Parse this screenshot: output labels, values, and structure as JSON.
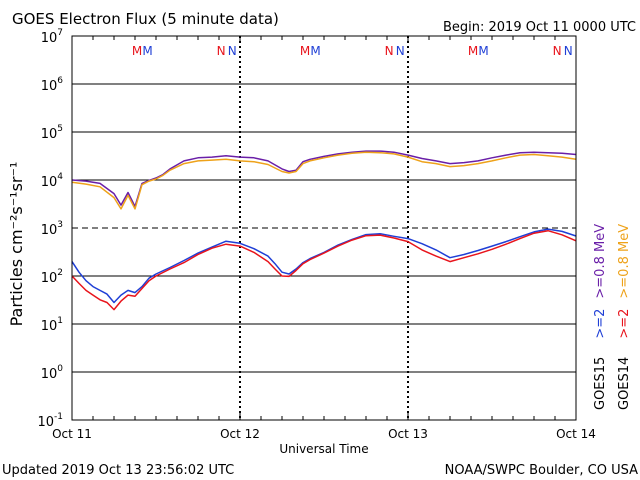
{
  "chart_data": {
    "type": "line",
    "title": "GOES Electron Flux (5 minute data)",
    "begin_label": "Begin: 2019 Oct 11 0000 UTC",
    "xlabel": "Universal Time",
    "ylabel": "Particles cm⁻²s⁻¹sr⁻¹",
    "y_scale": "log",
    "ylim": [
      0.1,
      10000000
    ],
    "y_ticks": [
      {
        "base": "10",
        "exp": "7"
      },
      {
        "base": "10",
        "exp": "6"
      },
      {
        "base": "10",
        "exp": "5"
      },
      {
        "base": "10",
        "exp": "4"
      },
      {
        "base": "10",
        "exp": "3"
      },
      {
        "base": "10",
        "exp": "2"
      },
      {
        "base": "10",
        "exp": "1"
      },
      {
        "base": "10",
        "exp": "0"
      },
      {
        "base": "10",
        "exp": "-1"
      }
    ],
    "threshold": 1000,
    "xlim": [
      0,
      72
    ],
    "x_ticks": [
      {
        "hour": 0,
        "label": "Oct 11"
      },
      {
        "hour": 24,
        "label": "Oct 12"
      },
      {
        "hour": 48,
        "label": "Oct 13"
      },
      {
        "hour": 72,
        "label": "Oct 14"
      }
    ],
    "markers": [
      {
        "hour": 9.3,
        "text": "M",
        "color": "#e8141c"
      },
      {
        "hour": 10.8,
        "text": "M",
        "color": "#1f3fd6"
      },
      {
        "hour": 21.3,
        "text": "N",
        "color": "#e8141c"
      },
      {
        "hour": 22.9,
        "text": "N",
        "color": "#1f3fd6"
      },
      {
        "hour": 33.3,
        "text": "M",
        "color": "#e8141c"
      },
      {
        "hour": 34.8,
        "text": "M",
        "color": "#1f3fd6"
      },
      {
        "hour": 45.3,
        "text": "N",
        "color": "#e8141c"
      },
      {
        "hour": 46.9,
        "text": "N",
        "color": "#1f3fd6"
      },
      {
        "hour": 57.3,
        "text": "M",
        "color": "#e8141c"
      },
      {
        "hour": 58.8,
        "text": "M",
        "color": "#1f3fd6"
      },
      {
        "hour": 69.3,
        "text": "N",
        "color": "#e8141c"
      },
      {
        "hour": 70.9,
        "text": "N",
        "color": "#1f3fd6"
      }
    ],
    "legend": [
      {
        "satellite": "GOES15",
        "channels": [
          {
            "label": ">=2",
            "color": "#1f3fd6"
          },
          {
            "label": ">=0.8 MeV",
            "color": "#6a1fa8"
          }
        ]
      },
      {
        "satellite": "GOES14",
        "channels": [
          {
            "label": ">=2",
            "color": "#e8141c"
          },
          {
            "label": ">=0.8 MeV",
            "color": "#eea21a"
          }
        ]
      }
    ],
    "series": [
      {
        "color": "#6a1fa8",
        "x": [
          0,
          2,
          4,
          6,
          7,
          8,
          9,
          10,
          11,
          12,
          13,
          14,
          16,
          18,
          20,
          22,
          24,
          26,
          28,
          30,
          31,
          32,
          33,
          34,
          36,
          38,
          40,
          42,
          44,
          46,
          48,
          50,
          52,
          54,
          56,
          58,
          60,
          62,
          64,
          66,
          68,
          70,
          72
        ],
        "y": [
          10000,
          9500,
          8500,
          5200,
          3000,
          5500,
          2800,
          8500,
          9800,
          11000,
          13000,
          17000,
          25000,
          29000,
          30000,
          32000,
          30000,
          29000,
          25000,
          17000,
          15000,
          16000,
          24000,
          27000,
          31000,
          35000,
          38000,
          40000,
          40000,
          38000,
          33000,
          28000,
          25000,
          22000,
          23000,
          25000,
          29000,
          33000,
          37000,
          38000,
          37000,
          36000,
          34000
        ]
      },
      {
        "color": "#eea21a",
        "x": [
          0,
          2,
          4,
          6,
          7,
          8,
          9,
          10,
          11,
          12,
          13,
          14,
          16,
          18,
          20,
          22,
          24,
          26,
          28,
          30,
          31,
          32,
          33,
          34,
          36,
          38,
          40,
          42,
          44,
          46,
          48,
          50,
          52,
          54,
          56,
          58,
          60,
          62,
          64,
          66,
          68,
          70,
          72
        ],
        "y": [
          9000,
          8200,
          7200,
          4300,
          2500,
          4800,
          2500,
          8000,
          9500,
          10500,
          12500,
          16000,
          22000,
          25000,
          26000,
          27000,
          25000,
          24000,
          21000,
          15000,
          14000,
          15000,
          22000,
          25000,
          29000,
          33000,
          36000,
          38000,
          37000,
          35000,
          30000,
          24000,
          22000,
          19000,
          20000,
          22000,
          25000,
          29000,
          33000,
          34000,
          32000,
          30000,
          27000
        ]
      },
      {
        "color": "#1f3fd6",
        "x": [
          0,
          1,
          2,
          3,
          4,
          5,
          6,
          7,
          8,
          9,
          10,
          11,
          12,
          14,
          16,
          18,
          20,
          22,
          24,
          26,
          28,
          29,
          30,
          31,
          32,
          33,
          34,
          36,
          38,
          40,
          42,
          44,
          46,
          48,
          50,
          52,
          54,
          56,
          58,
          60,
          62,
          64,
          66,
          68,
          70,
          72
        ],
        "y": [
          200,
          120,
          80,
          60,
          50,
          42,
          28,
          40,
          50,
          45,
          60,
          90,
          110,
          150,
          210,
          300,
          400,
          530,
          480,
          370,
          260,
          180,
          120,
          110,
          140,
          190,
          230,
          310,
          440,
          580,
          730,
          760,
          670,
          600,
          470,
          350,
          240,
          280,
          340,
          420,
          520,
          660,
          830,
          950,
          850,
          680
        ]
      },
      {
        "color": "#e8141c",
        "x": [
          0,
          1,
          2,
          3,
          4,
          5,
          6,
          7,
          8,
          9,
          10,
          11,
          12,
          14,
          16,
          18,
          20,
          22,
          24,
          26,
          28,
          29,
          30,
          31,
          32,
          33,
          34,
          36,
          38,
          40,
          42,
          44,
          46,
          48,
          50,
          52,
          54,
          56,
          58,
          60,
          62,
          64,
          66,
          68,
          70,
          72
        ],
        "y": [
          100,
          70,
          50,
          40,
          32,
          28,
          20,
          30,
          40,
          38,
          55,
          80,
          100,
          140,
          190,
          280,
          380,
          460,
          420,
          310,
          200,
          140,
          100,
          98,
          130,
          180,
          220,
          300,
          420,
          560,
          690,
          710,
          620,
          520,
          350,
          260,
          200,
          240,
          290,
          360,
          460,
          600,
          780,
          880,
          720,
          540
        ]
      }
    ]
  },
  "footer": {
    "updated": "Updated 2019 Oct 13 23:56:02 UTC",
    "credit": "NOAA/SWPC Boulder, CO USA"
  }
}
